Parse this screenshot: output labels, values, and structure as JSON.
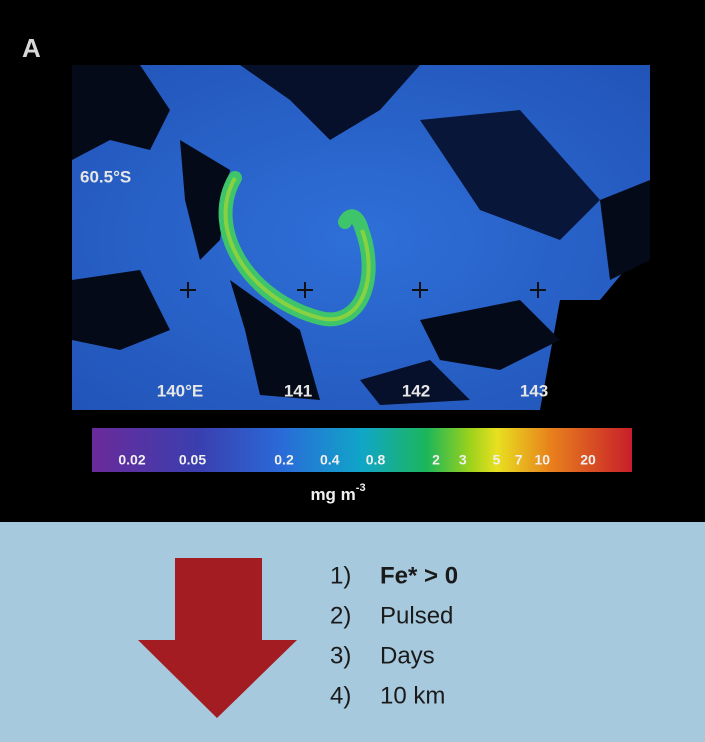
{
  "panel_label": "A",
  "map": {
    "lat_label": "60.5°S",
    "lon_labels": [
      "140°E",
      "141",
      "142",
      "143"
    ]
  },
  "colorbar": {
    "ticks": [
      0.02,
      0.05,
      0.2,
      0.4,
      0.8,
      2,
      3,
      5,
      7,
      10,
      20
    ],
    "unit": "mg m",
    "unit_exponent": "-3"
  },
  "list": [
    {
      "number": "1)",
      "text": "Fe* > 0"
    },
    {
      "number": "2)",
      "text": "Pulsed"
    },
    {
      "number": "3)",
      "text": "Days"
    },
    {
      "number": "4)",
      "text": "10 km"
    }
  ]
}
